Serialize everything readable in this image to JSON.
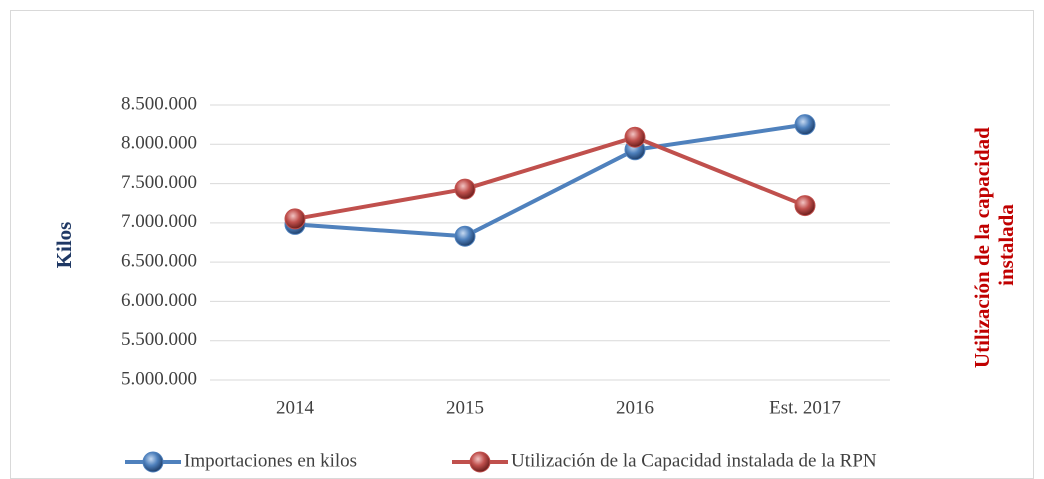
{
  "chart_data": {
    "type": "line",
    "categories": [
      "2014",
      "2015",
      "2016",
      "Est. 2017"
    ],
    "series": [
      {
        "name": "Importaciones en kilos",
        "color": "#4f81bd",
        "values": [
          6980000,
          6830000,
          7930000,
          8250000
        ]
      },
      {
        "name": "Utilización de la Capacidad instalada de la RPN",
        "color": "#c0504d",
        "values": [
          7050000,
          7430000,
          8090000,
          7220000
        ]
      }
    ],
    "y_label": "Kilos",
    "y2_label": [
      "Utilización de la capacidad",
      "instalada"
    ],
    "ylim": [
      5000000,
      8500000
    ],
    "yticks": [
      {
        "value": 5000000,
        "label": "5.000.000"
      },
      {
        "value": 5500000,
        "label": "5.500.000"
      },
      {
        "value": 6000000,
        "label": "6.000.000"
      },
      {
        "value": 6500000,
        "label": "6.500.000"
      },
      {
        "value": 7000000,
        "label": "7.000.000"
      },
      {
        "value": 7500000,
        "label": "7.500.000"
      },
      {
        "value": 8000000,
        "label": "8.000.000"
      },
      {
        "value": 8500000,
        "label": "8.500.000"
      }
    ],
    "grid": true,
    "legend": "bottom"
  }
}
